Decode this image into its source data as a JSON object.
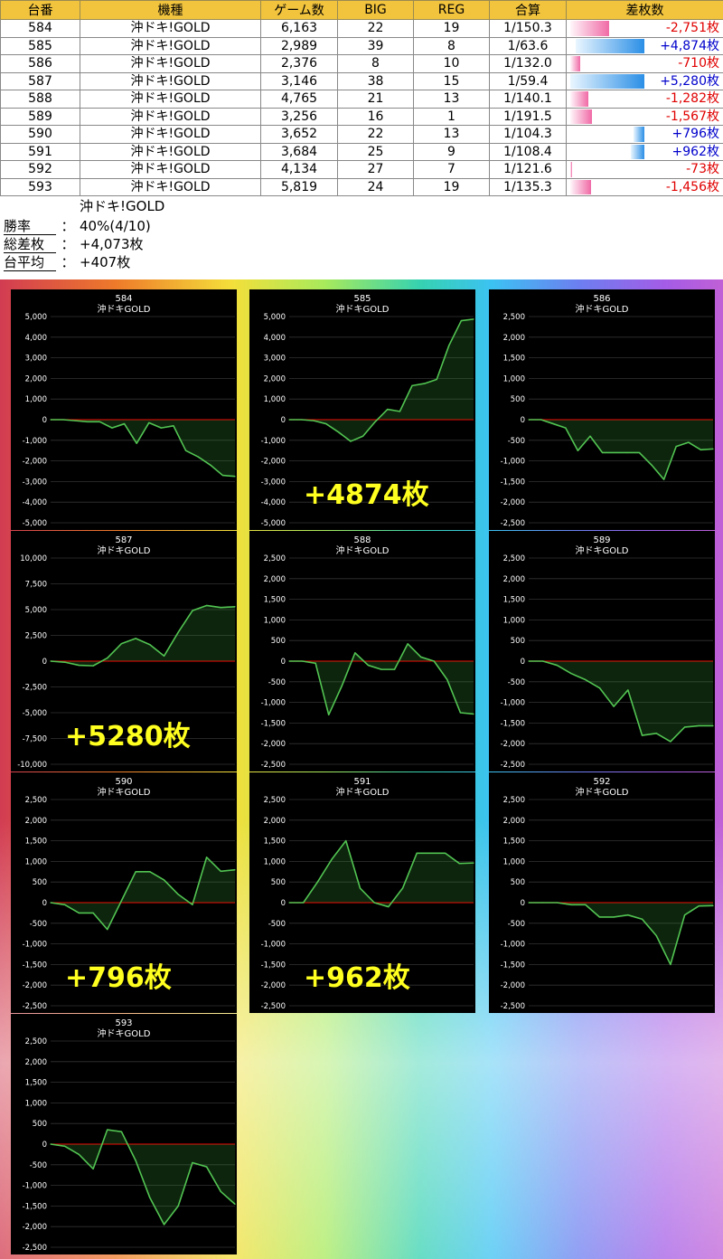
{
  "table": {
    "headers": [
      "台番",
      "機種",
      "ゲーム数",
      "BIG",
      "REG",
      "合算",
      "差枚数"
    ],
    "rows": [
      {
        "no": "584",
        "machine": "沖ドキ!GOLD",
        "games": "6,163",
        "big": "22",
        "reg": "19",
        "ratio": "1/150.3",
        "diff": "-2,751枚",
        "diff_value": -2751
      },
      {
        "no": "585",
        "machine": "沖ドキ!GOLD",
        "games": "2,989",
        "big": "39",
        "reg": "8",
        "ratio": "1/63.6",
        "diff": "+4,874枚",
        "diff_value": 4874
      },
      {
        "no": "586",
        "machine": "沖ドキ!GOLD",
        "games": "2,376",
        "big": "8",
        "reg": "10",
        "ratio": "1/132.0",
        "diff": "-710枚",
        "diff_value": -710
      },
      {
        "no": "587",
        "machine": "沖ドキ!GOLD",
        "games": "3,146",
        "big": "38",
        "reg": "15",
        "ratio": "1/59.4",
        "diff": "+5,280枚",
        "diff_value": 5280
      },
      {
        "no": "588",
        "machine": "沖ドキ!GOLD",
        "games": "4,765",
        "big": "21",
        "reg": "13",
        "ratio": "1/140.1",
        "diff": "-1,282枚",
        "diff_value": -1282
      },
      {
        "no": "589",
        "machine": "沖ドキ!GOLD",
        "games": "3,256",
        "big": "16",
        "reg": "1",
        "ratio": "1/191.5",
        "diff": "-1,567枚",
        "diff_value": -1567
      },
      {
        "no": "590",
        "machine": "沖ドキ!GOLD",
        "games": "3,652",
        "big": "22",
        "reg": "13",
        "ratio": "1/104.3",
        "diff": "+796枚",
        "diff_value": 796
      },
      {
        "no": "591",
        "machine": "沖ドキ!GOLD",
        "games": "3,684",
        "big": "25",
        "reg": "9",
        "ratio": "1/108.4",
        "diff": "+962枚",
        "diff_value": 962
      },
      {
        "no": "592",
        "machine": "沖ドキ!GOLD",
        "games": "4,134",
        "big": "27",
        "reg": "7",
        "ratio": "1/121.6",
        "diff": "-73枚",
        "diff_value": -73
      },
      {
        "no": "593",
        "machine": "沖ドキ!GOLD",
        "games": "5,819",
        "big": "24",
        "reg": "19",
        "ratio": "1/135.3",
        "diff": "-1,456枚",
        "diff_value": -1456
      }
    ]
  },
  "summary": {
    "machine": "沖ドキ!GOLD",
    "win_rate_label": "勝率",
    "win_rate": "40%(4/10)",
    "total_label": "総差枚",
    "total": "+4,073枚",
    "avg_label": "台平均",
    "avg": "+407枚",
    "colon": "："
  },
  "colors": {
    "header_bg": "#f2c43d",
    "negative_text": "#e00000",
    "positive_text": "#0000cc",
    "line": "#52c452",
    "zero_line": "#cc0000",
    "callout": "#ffff20"
  },
  "chart_data": [
    {
      "type": "area",
      "title": "584",
      "subtitle": "沖ドキGOLD",
      "ylim": [
        -5000,
        5000
      ],
      "yticks": [
        5000,
        4000,
        3000,
        2000,
        1000,
        0,
        -1000,
        -2000,
        -3000,
        -4000,
        -5000
      ],
      "ytick_labels": [
        "5,000",
        "4,000",
        "3,000",
        "2,000",
        "1,000",
        "0",
        "-1,000",
        "-2,000",
        "-3,000",
        "-4,000",
        "-5,000"
      ],
      "values": [
        0,
        0,
        -50,
        -100,
        -100,
        -400,
        -200,
        -1150,
        -150,
        -400,
        -300,
        -1500,
        -1800,
        -2200,
        -2700,
        -2751
      ],
      "callout": ""
    },
    {
      "type": "area",
      "title": "585",
      "subtitle": "沖ドキGOLD",
      "ylim": [
        -5000,
        5000
      ],
      "yticks": [
        5000,
        4000,
        3000,
        2000,
        1000,
        0,
        -1000,
        -2000,
        -3000,
        -4000,
        -5000
      ],
      "ytick_labels": [
        "5,000",
        "4,000",
        "3,000",
        "2,000",
        "1,000",
        "0",
        "-1,000",
        "-2,000",
        "-3,000",
        "-4,000",
        "-5,000"
      ],
      "values": [
        0,
        0,
        -50,
        -200,
        -600,
        -1050,
        -800,
        -100,
        500,
        400,
        1650,
        1750,
        1950,
        3600,
        4800,
        4874
      ],
      "callout": "+4874枚"
    },
    {
      "type": "area",
      "title": "586",
      "subtitle": "沖ドキGOLD",
      "ylim": [
        -2500,
        2500
      ],
      "yticks": [
        2500,
        2000,
        1500,
        1000,
        500,
        0,
        -500,
        -1000,
        -1500,
        -2000,
        -2500
      ],
      "ytick_labels": [
        "2,500",
        "2,000",
        "1,500",
        "1,000",
        "500",
        "0",
        "-500",
        "-1,000",
        "-1,500",
        "-2,000",
        "-2,500"
      ],
      "values": [
        0,
        0,
        -100,
        -200,
        -750,
        -400,
        -800,
        -800,
        -800,
        -800,
        -1100,
        -1450,
        -650,
        -550,
        -730,
        -710
      ],
      "callout": ""
    },
    {
      "type": "area",
      "title": "587",
      "subtitle": "沖ドキGOLD",
      "ylim": [
        -10000,
        10000
      ],
      "yticks": [
        10000,
        7500,
        5000,
        2500,
        0,
        -2500,
        -5000,
        -7500,
        -10000
      ],
      "ytick_labels": [
        "10,000",
        "7,500",
        "5,000",
        "2,500",
        "0",
        "-2,500",
        "-5,000",
        "-7,500",
        "-10,000"
      ],
      "values": [
        0,
        -100,
        -400,
        -450,
        300,
        1700,
        2200,
        1600,
        500,
        2800,
        4900,
        5400,
        5200,
        5280
      ],
      "callout": "+5280枚"
    },
    {
      "type": "area",
      "title": "588",
      "subtitle": "沖ドキGOLD",
      "ylim": [
        -2500,
        2500
      ],
      "yticks": [
        2500,
        2000,
        1500,
        1000,
        500,
        0,
        -500,
        -1000,
        -1500,
        -2000,
        -2500
      ],
      "ytick_labels": [
        "2,500",
        "2,000",
        "1,500",
        "1,000",
        "500",
        "0",
        "-500",
        "-1,000",
        "-1,500",
        "-2,000",
        "-2,500"
      ],
      "values": [
        0,
        0,
        -50,
        -1300,
        -600,
        200,
        -100,
        -200,
        -200,
        420,
        100,
        0,
        -450,
        -1250,
        -1282
      ],
      "callout": ""
    },
    {
      "type": "area",
      "title": "589",
      "subtitle": "沖ドキGOLD",
      "ylim": [
        -2500,
        2500
      ],
      "yticks": [
        2500,
        2000,
        1500,
        1000,
        500,
        0,
        -500,
        -1000,
        -1500,
        -2000,
        -2500
      ],
      "ytick_labels": [
        "2,500",
        "2,000",
        "1,500",
        "1,000",
        "500",
        "0",
        "-500",
        "-1,000",
        "-1,500",
        "-2,000",
        "-2,500"
      ],
      "values": [
        0,
        0,
        -100,
        -300,
        -450,
        -650,
        -1100,
        -700,
        -1800,
        -1750,
        -1950,
        -1600,
        -1567,
        -1567
      ],
      "callout": ""
    },
    {
      "type": "area",
      "title": "590",
      "subtitle": "沖ドキGOLD",
      "ylim": [
        -2500,
        2500
      ],
      "yticks": [
        2500,
        2000,
        1500,
        1000,
        500,
        0,
        -500,
        -1000,
        -1500,
        -2000,
        -2500
      ],
      "ytick_labels": [
        "2,500",
        "2,000",
        "1,500",
        "1,000",
        "500",
        "0",
        "-500",
        "-1,000",
        "-1,500",
        "-2,000",
        "-2,500"
      ],
      "values": [
        0,
        -50,
        -250,
        -250,
        -650,
        50,
        750,
        750,
        550,
        200,
        -50,
        1100,
        760,
        796
      ],
      "callout": "+796枚"
    },
    {
      "type": "area",
      "title": "591",
      "subtitle": "沖ドキGOLD",
      "ylim": [
        -2500,
        2500
      ],
      "yticks": [
        2500,
        2000,
        1500,
        1000,
        500,
        0,
        -500,
        -1000,
        -1500,
        -2000,
        -2500
      ],
      "ytick_labels": [
        "2,500",
        "2,000",
        "1,500",
        "1,000",
        "500",
        "0",
        "-500",
        "-1,000",
        "-1,500",
        "-2,000",
        "-2,500"
      ],
      "values": [
        0,
        0,
        500,
        1050,
        1500,
        350,
        0,
        -100,
        350,
        1200,
        1200,
        1200,
        950,
        962
      ],
      "callout": "+962枚"
    },
    {
      "type": "area",
      "title": "592",
      "subtitle": "沖ドキGOLD",
      "ylim": [
        -2500,
        2500
      ],
      "yticks": [
        2500,
        2000,
        1500,
        1000,
        500,
        0,
        -500,
        -1000,
        -1500,
        -2000,
        -2500
      ],
      "ytick_labels": [
        "2,500",
        "2,000",
        "1,500",
        "1,000",
        "500",
        "0",
        "-500",
        "-1,000",
        "-1,500",
        "-2,000",
        "-2,500"
      ],
      "values": [
        0,
        0,
        0,
        -50,
        -50,
        -350,
        -350,
        -300,
        -400,
        -800,
        -1500,
        -300,
        -80,
        -73
      ],
      "callout": ""
    },
    {
      "type": "area",
      "title": "593",
      "subtitle": "沖ドキGOLD",
      "ylim": [
        -2500,
        2500
      ],
      "yticks": [
        2500,
        2000,
        1500,
        1000,
        500,
        0,
        -500,
        -1000,
        -1500,
        -2000,
        -2500
      ],
      "ytick_labels": [
        "2,500",
        "2,000",
        "1,500",
        "1,000",
        "500",
        "0",
        "-500",
        "-1,000",
        "-1,500",
        "-2,000",
        "-2,500"
      ],
      "values": [
        0,
        -50,
        -250,
        -600,
        350,
        300,
        -400,
        -1300,
        -1950,
        -1500,
        -450,
        -550,
        -1150,
        -1456
      ],
      "callout": ""
    }
  ]
}
